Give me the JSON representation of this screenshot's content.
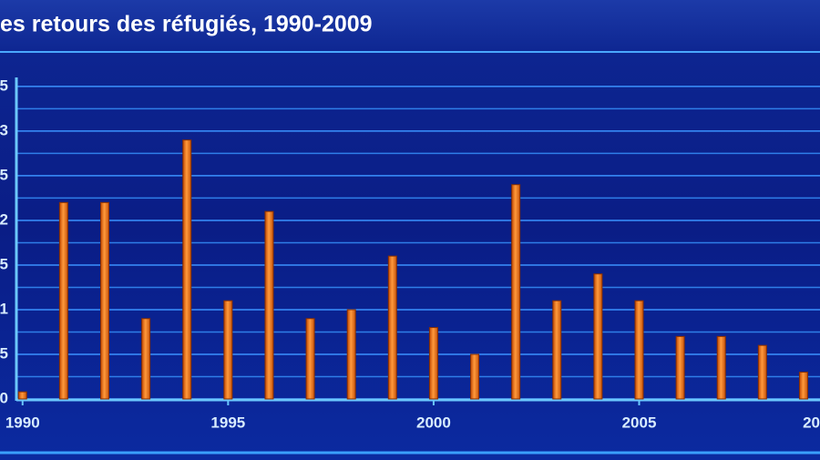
{
  "chart_data": {
    "type": "bar",
    "title": "es retours des réfugiés, 1990-2009",
    "x": [
      1990,
      1991,
      1992,
      1993,
      1994,
      1995,
      1996,
      1997,
      1998,
      1999,
      2000,
      2001,
      2002,
      2003,
      2004,
      2005,
      2006,
      2007,
      2008,
      2009
    ],
    "values": [
      0.08,
      2.2,
      2.2,
      0.9,
      2.9,
      1.1,
      2.1,
      0.9,
      1.0,
      1.6,
      0.8,
      0.5,
      2.4,
      1.1,
      1.4,
      1.1,
      0.7,
      0.7,
      0.6,
      0.3
    ],
    "color": "#f07a1a",
    "xlim": [
      1989.85,
      2009.4
    ],
    "xticks": [
      1990,
      1995,
      2000,
      2005,
      {
        "value": 2010,
        "label": "20"
      }
    ],
    "ylim": [
      0,
      3.55
    ],
    "yticks": [
      0,
      {
        "value": 0.5,
        "label": "5"
      },
      1,
      {
        "value": 1.5,
        "label": "5"
      },
      2,
      {
        "value": 2.5,
        "label": "5"
      },
      3,
      {
        "value": 3.5,
        "label": "5"
      }
    ],
    "grid": true
  }
}
